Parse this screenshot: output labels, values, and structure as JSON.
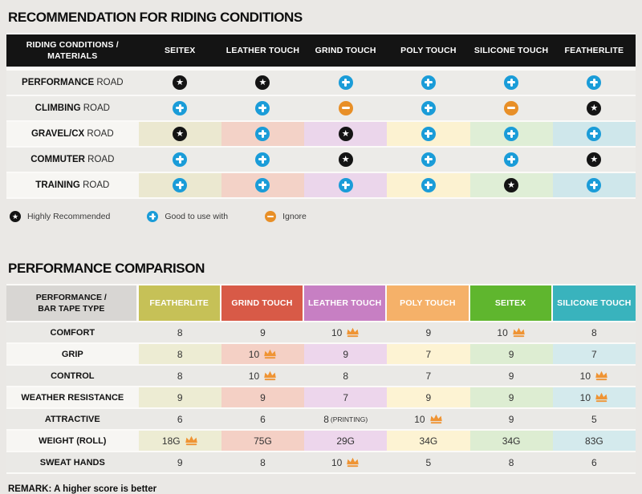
{
  "colors": {
    "page_bg": "#eae8e5",
    "table1_header_bg": "#141414",
    "star_bg": "#141414",
    "plus_bg": "#1a9cd8",
    "minus_bg": "#e88f27",
    "crown": "#ef9434",
    "table2_label_header_bg": "#d8d6d3"
  },
  "section1": {
    "title": "RECOMMENDATION FOR RIDING CONDITIONS",
    "header": {
      "label_line1": "RIDING CONDITIONS /",
      "label_line2": "MATERIALS",
      "columns": [
        "SEITEX",
        "LEATHER TOUCH",
        "GRIND TOUCH",
        "POLY TOUCH",
        "SILICONE TOUCH",
        "FEATHERLITE"
      ]
    },
    "tints": [
      "#ebe8d0",
      "#f3d2c7",
      "#ebd6eb",
      "#fcf2d1",
      "#dfeed6",
      "#cfe7eb"
    ],
    "rows": [
      {
        "label_strong": "PERFORMANCE",
        "label_rest": "ROAD",
        "tinted": false,
        "cells": [
          "star",
          "star",
          "plus",
          "plus",
          "plus",
          "plus"
        ]
      },
      {
        "label_strong": "CLIMBING",
        "label_rest": "ROAD",
        "tinted": false,
        "cells": [
          "plus",
          "plus",
          "minus",
          "plus",
          "minus",
          "star"
        ]
      },
      {
        "label_strong": "GRAVEL/CX",
        "label_rest": "ROAD",
        "tinted": true,
        "cells": [
          "star",
          "plus",
          "star",
          "plus",
          "plus",
          "plus"
        ]
      },
      {
        "label_strong": "COMMUTER",
        "label_rest": "ROAD",
        "tinted": false,
        "cells": [
          "plus",
          "plus",
          "star",
          "plus",
          "plus",
          "star"
        ]
      },
      {
        "label_strong": "TRAINING",
        "label_rest": "ROAD",
        "tinted": true,
        "cells": [
          "plus",
          "plus",
          "plus",
          "plus",
          "star",
          "plus"
        ]
      }
    ],
    "legend": [
      {
        "icon": "star",
        "label": "Highly Recommended"
      },
      {
        "icon": "plus",
        "label": "Good to use with"
      },
      {
        "icon": "minus",
        "label": "Ignore"
      }
    ]
  },
  "section2": {
    "title": "PERFORMANCE COMPARISON",
    "header": {
      "label_line1": "PERFORMANCE /",
      "label_line2": "BAR TAPE TYPE",
      "columns": [
        {
          "label": "FEATHERLITE",
          "color": "#c6c157"
        },
        {
          "label": "GRIND TOUCH",
          "color": "#d85a47"
        },
        {
          "label": "LEATHER TOUCH",
          "color": "#c77fc3"
        },
        {
          "label": "POLY TOUCH",
          "color": "#f5b169"
        },
        {
          "label": "SEITEX",
          "color": "#5fb62e"
        },
        {
          "label": "SILICONE TOUCH",
          "color": "#39b3bd"
        }
      ]
    },
    "tints": [
      "#edecd3",
      "#f4d0c5",
      "#edd6ec",
      "#fdf3d3",
      "#ddedd2",
      "#d4eaed"
    ],
    "rows": [
      {
        "label": "COMFORT",
        "tinted": false,
        "cells": [
          {
            "v": "8"
          },
          {
            "v": "9"
          },
          {
            "v": "10",
            "crown": true
          },
          {
            "v": "9"
          },
          {
            "v": "10",
            "crown": true
          },
          {
            "v": "8"
          }
        ]
      },
      {
        "label": "GRIP",
        "tinted": true,
        "cells": [
          {
            "v": "8"
          },
          {
            "v": "10",
            "crown": true
          },
          {
            "v": "9"
          },
          {
            "v": "7"
          },
          {
            "v": "9"
          },
          {
            "v": "7"
          }
        ]
      },
      {
        "label": "CONTROL",
        "tinted": false,
        "cells": [
          {
            "v": "8"
          },
          {
            "v": "10",
            "crown": true
          },
          {
            "v": "8"
          },
          {
            "v": "7"
          },
          {
            "v": "9"
          },
          {
            "v": "10",
            "crown": true
          }
        ]
      },
      {
        "label": "WEATHER RESISTANCE",
        "tinted": true,
        "cells": [
          {
            "v": "9"
          },
          {
            "v": "9"
          },
          {
            "v": "7"
          },
          {
            "v": "9"
          },
          {
            "v": "9"
          },
          {
            "v": "10",
            "crown": true
          }
        ]
      },
      {
        "label": "ATTRACTIVE",
        "tinted": false,
        "cells": [
          {
            "v": "6"
          },
          {
            "v": "6"
          },
          {
            "v": "8",
            "suffix": "(PRINTING)"
          },
          {
            "v": "10",
            "crown": true
          },
          {
            "v": "9"
          },
          {
            "v": "5"
          }
        ]
      },
      {
        "label": "WEIGHT (ROLL)",
        "tinted": true,
        "cells": [
          {
            "v": "18G",
            "crown": true
          },
          {
            "v": "75G"
          },
          {
            "v": "29G"
          },
          {
            "v": "34G"
          },
          {
            "v": "34G"
          },
          {
            "v": "83G"
          }
        ]
      },
      {
        "label": "SWEAT HANDS",
        "tinted": false,
        "cells": [
          {
            "v": "9"
          },
          {
            "v": "8"
          },
          {
            "v": "10",
            "crown": true
          },
          {
            "v": "5"
          },
          {
            "v": "8"
          },
          {
            "v": "6"
          }
        ]
      }
    ],
    "remark": "REMARK: A higher score is better"
  },
  "chart_data": [
    {
      "type": "table",
      "title": "RECOMMENDATION FOR RIDING CONDITIONS",
      "columns": [
        "RIDING CONDITIONS / MATERIALS",
        "SEITEX",
        "LEATHER TOUCH",
        "GRIND TOUCH",
        "POLY TOUCH",
        "SILICONE TOUCH",
        "FEATHERLITE"
      ],
      "rows": [
        [
          "PERFORMANCE ROAD",
          "highly-recommended",
          "highly-recommended",
          "good-to-use-with",
          "good-to-use-with",
          "good-to-use-with",
          "good-to-use-with"
        ],
        [
          "CLIMBING ROAD",
          "good-to-use-with",
          "good-to-use-with",
          "ignore",
          "good-to-use-with",
          "ignore",
          "highly-recommended"
        ],
        [
          "GRAVEL/CX ROAD",
          "highly-recommended",
          "good-to-use-with",
          "highly-recommended",
          "good-to-use-with",
          "good-to-use-with",
          "good-to-use-with"
        ],
        [
          "COMMUTER ROAD",
          "good-to-use-with",
          "good-to-use-with",
          "highly-recommended",
          "good-to-use-with",
          "good-to-use-with",
          "highly-recommended"
        ],
        [
          "TRAINING ROAD",
          "good-to-use-with",
          "good-to-use-with",
          "good-to-use-with",
          "good-to-use-with",
          "highly-recommended",
          "good-to-use-with"
        ]
      ],
      "legend": [
        "Highly Recommended",
        "Good to use with",
        "Ignore"
      ]
    },
    {
      "type": "table",
      "title": "PERFORMANCE COMPARISON",
      "columns": [
        "PERFORMANCE / BAR TAPE TYPE",
        "FEATHERLITE",
        "GRIND TOUCH",
        "LEATHER TOUCH",
        "POLY TOUCH",
        "SEITEX",
        "SILICONE TOUCH"
      ],
      "rows": [
        [
          "COMFORT",
          "8",
          "9",
          "10 (best)",
          "9",
          "10 (best)",
          "8"
        ],
        [
          "GRIP",
          "8",
          "10 (best)",
          "9",
          "7",
          "9",
          "7"
        ],
        [
          "CONTROL",
          "8",
          "10 (best)",
          "8",
          "7",
          "9",
          "10 (best)"
        ],
        [
          "WEATHER RESISTANCE",
          "9",
          "9",
          "7",
          "9",
          "9",
          "10 (best)"
        ],
        [
          "ATTRACTIVE",
          "6",
          "6",
          "8 (PRINTING)",
          "10 (best)",
          "9",
          "5"
        ],
        [
          "WEIGHT (ROLL)",
          "18G (best)",
          "75G",
          "29G",
          "34G",
          "34G",
          "83G"
        ],
        [
          "SWEAT HANDS",
          "9",
          "8",
          "10 (best)",
          "5",
          "8",
          "6"
        ]
      ],
      "note": "REMARK: A higher score is better"
    }
  ]
}
